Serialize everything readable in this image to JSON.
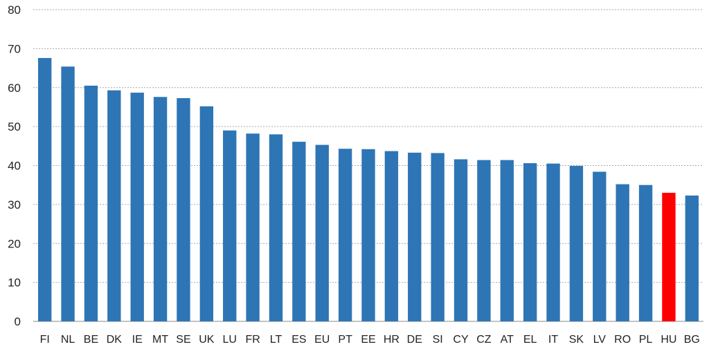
{
  "chart_data": {
    "type": "bar",
    "title": "",
    "xlabel": "",
    "ylabel": "",
    "ylim": [
      0,
      80
    ],
    "yticks": [
      0,
      10,
      20,
      30,
      40,
      50,
      60,
      70,
      80
    ],
    "grid": true,
    "categories": [
      "FI",
      "NL",
      "BE",
      "DK",
      "IE",
      "MT",
      "SE",
      "UK",
      "LU",
      "FR",
      "LT",
      "ES",
      "EU",
      "PT",
      "EE",
      "HR",
      "DE",
      "SI",
      "CY",
      "CZ",
      "AT",
      "EL",
      "IT",
      "SK",
      "LV",
      "RO",
      "PL",
      "HU",
      "BG"
    ],
    "values": [
      67.6,
      65.4,
      60.5,
      59.3,
      58.7,
      57.6,
      57.3,
      55.2,
      49.0,
      48.2,
      48.0,
      46.1,
      45.3,
      44.3,
      44.2,
      43.7,
      43.3,
      43.2,
      41.6,
      41.4,
      41.4,
      40.6,
      40.5,
      39.9,
      38.4,
      35.2,
      35.0,
      33.0,
      32.3
    ],
    "colors": {
      "default": "#2e75b6",
      "highlight": "#ff0000"
    },
    "highlight_category": "HU"
  }
}
